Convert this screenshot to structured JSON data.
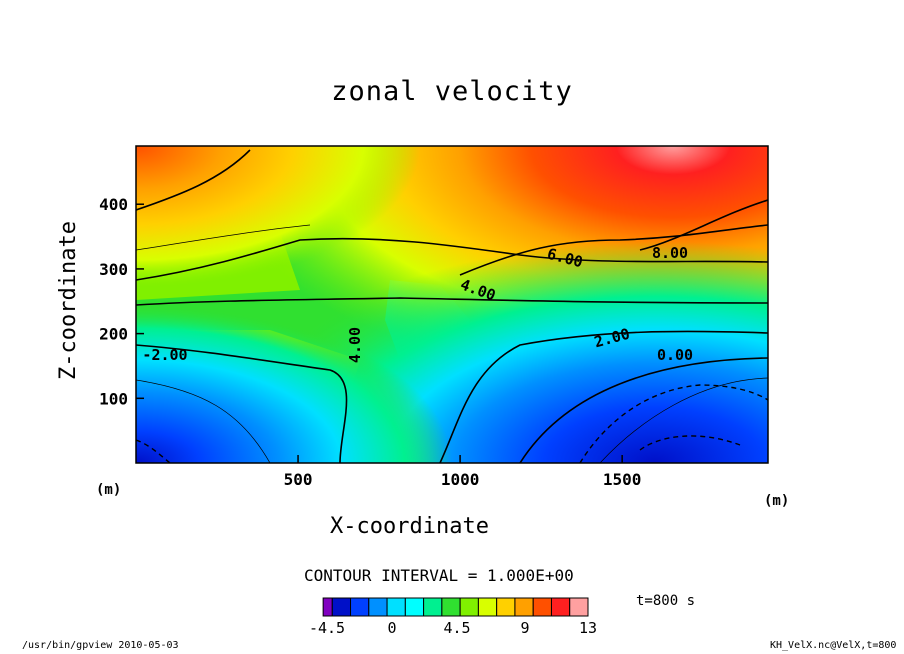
{
  "chart_data": {
    "type": "heatmap",
    "title": "zonal velocity",
    "xlabel": "X-coordinate",
    "ylabel": "Z-coordinate",
    "x_unit": "(m)",
    "y_unit": "(m)",
    "xlim": [
      0,
      1950
    ],
    "ylim": [
      0,
      490
    ],
    "x_ticks": [
      "500",
      "1000",
      "1500"
    ],
    "y_ticks": [
      "100",
      "200",
      "300",
      "400"
    ],
    "contour_labels": [
      "-2.00",
      "4.00",
      "4.00",
      "6.00",
      "8.00",
      "2.00",
      "0.00"
    ],
    "contour_interval": "CONTOUR INTERVAL = 1.000E+00",
    "time": "t=800 s",
    "colorbar_ticks": [
      "-4.5",
      "0",
      "4.5",
      "9",
      "13"
    ],
    "colorbar_colors": [
      "#8000c0",
      "#0010c8",
      "#0040ff",
      "#0090ff",
      "#00e0ff",
      "#00ffff",
      "#00f090",
      "#30e030",
      "#80f000",
      "#d8ff00",
      "#ffd000",
      "#ffa000",
      "#ff5000",
      "#ff2020",
      "#ffa0a0"
    ],
    "field_description_points": [
      {
        "x": 100,
        "z": 450,
        "u": 11
      },
      {
        "x": 1750,
        "z": 470,
        "u": 12
      },
      {
        "x": 1750,
        "z": 40,
        "u": -3
      },
      {
        "x": 50,
        "z": 30,
        "u": -2
      },
      {
        "x": 850,
        "z": 200,
        "u": 4.5
      },
      {
        "x": 1000,
        "z": 250,
        "u": 4
      }
    ]
  },
  "footer": {
    "left": "/usr/bin/gpview  2010-05-03",
    "right": "KH_VelX.nc@VelX,t=800"
  }
}
